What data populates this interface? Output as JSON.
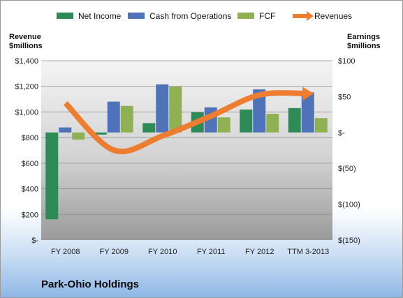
{
  "chart_data": {
    "type": "bar",
    "title": "Park-Ohio Holdings",
    "categories": [
      "FY 2008",
      "FY 2009",
      "FY 2010",
      "FY 2011",
      "FY 2012",
      "TTM 3-2013"
    ],
    "y_left": {
      "label": "Revenue\n$millions",
      "range": [
        0,
        1400
      ],
      "ticks": [
        0,
        200,
        400,
        600,
        800,
        1000,
        1200,
        1400
      ],
      "tick_labels": [
        "$-",
        "$200",
        "$400",
        "$600",
        "$800",
        "$1,000",
        "$1,200",
        "$1,400"
      ]
    },
    "y_right": {
      "label": "Earnings\n$millions",
      "range": [
        -150,
        100
      ],
      "ticks": [
        -150,
        -100,
        -50,
        0,
        50,
        100
      ],
      "tick_labels": [
        "$(150)",
        "$(100)",
        "$(50)",
        "$-",
        "$50",
        "$100"
      ]
    },
    "bar_baseline": 0,
    "series": [
      {
        "name": "Net Income",
        "axis": "right",
        "color": "#2e8b57",
        "values": [
          -121,
          -3,
          13,
          28,
          32,
          34
        ]
      },
      {
        "name": "Cash from Operations",
        "axis": "right",
        "color": "#4f72b8",
        "values": [
          7,
          43,
          67,
          35,
          60,
          56
        ]
      },
      {
        "name": "FCF",
        "axis": "right",
        "color": "#8fb153",
        "values": [
          -10,
          37,
          64,
          21,
          26,
          20
        ]
      },
      {
        "name": "Revenues",
        "axis": "left",
        "type": "line",
        "color": "#ed7d31",
        "values": [
          1069,
          701,
          813,
          968,
          1133,
          1143
        ]
      }
    ],
    "legend_position": "top",
    "grid": true
  }
}
